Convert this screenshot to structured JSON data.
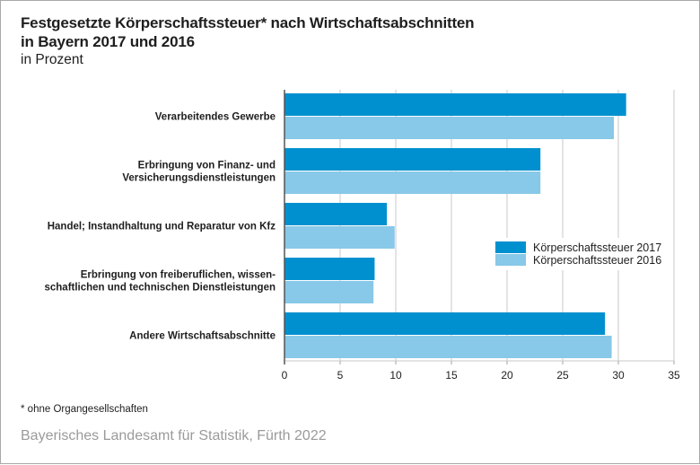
{
  "header": {
    "title": "Festgesetzte Körperschaftssteuer* nach Wirtschaftsabschnitten\nin Bayern 2017 und 2016",
    "subtitle": "in Prozent"
  },
  "footer": {
    "footnote": "* ohne Organgesellschaften",
    "source": "Bayerisches Landesamt für Statistik, Fürth 2022"
  },
  "chart_data": {
    "type": "bar",
    "orientation": "horizontal",
    "title": "Festgesetzte Körperschaftssteuer* nach Wirtschaftsabschnitten in Bayern 2017 und 2016",
    "subtitle": "in Prozent",
    "xlabel": "",
    "ylabel": "",
    "xlim": [
      0,
      35
    ],
    "xticks": [
      0,
      5,
      10,
      15,
      20,
      25,
      30,
      35
    ],
    "grid": "vertical",
    "legend_position": "right",
    "categories": [
      [
        "Verarbeitendes Gewerbe"
      ],
      [
        "Erbringung von Finanz- und",
        "Versicherungsdienstleistungen"
      ],
      [
        "Handel; Instandhaltung und Reparatur von Kfz"
      ],
      [
        "Erbringung von freiberuflichen, wissen-",
        "schaftlichen und technischen Dienstleistungen"
      ],
      [
        "Andere Wirtschaftsabschnitte"
      ]
    ],
    "series": [
      {
        "name": "Körperschaftssteuer 2017",
        "color": "#0090cf",
        "values": [
          30.7,
          23.0,
          9.2,
          8.1,
          28.8
        ]
      },
      {
        "name": "Körperschaftssteuer 2016",
        "color": "#88c8e8",
        "values": [
          29.6,
          23.0,
          9.9,
          8.0,
          29.4
        ]
      }
    ]
  }
}
